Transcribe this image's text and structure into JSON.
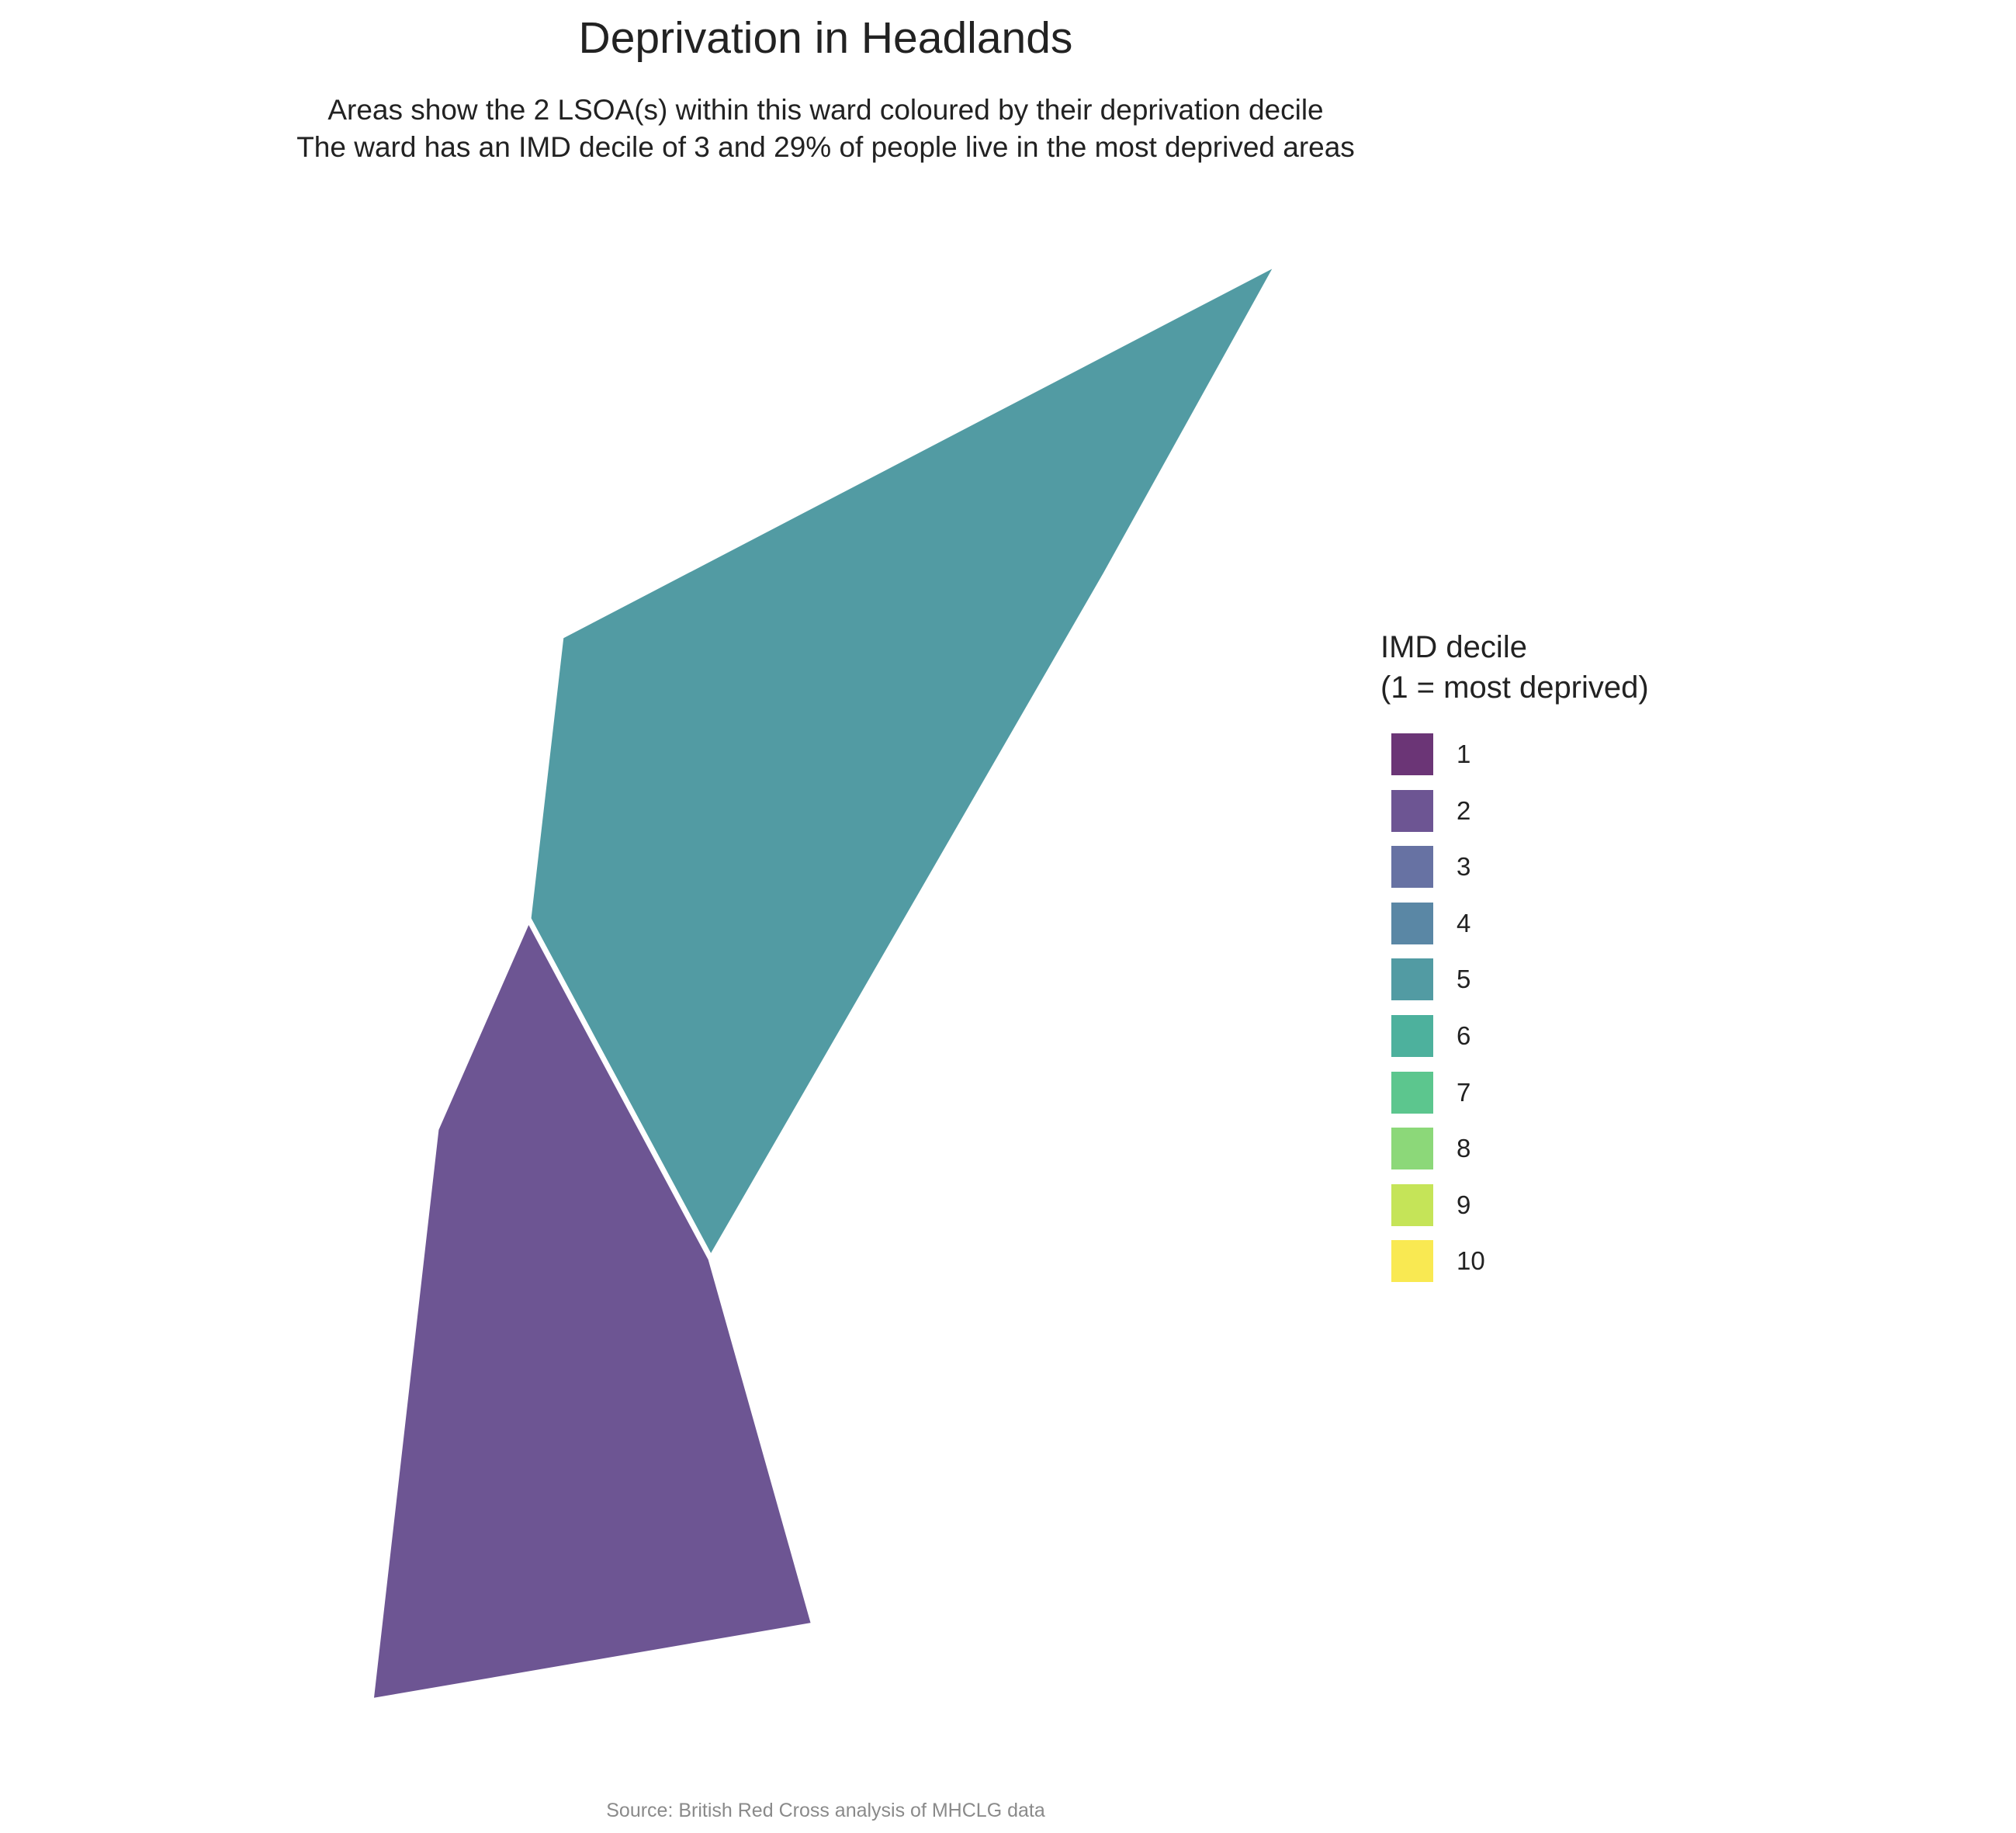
{
  "title": "Deprivation in Headlands",
  "subtitle_lines": [
    "Areas show the 2 LSOA(s) within this ward coloured by their deprivation decile",
    "The ward has an IMD decile of 3 and 29% of people live in the most deprived areas"
  ],
  "areas": [
    {
      "decile": 5,
      "color": "#529ba3"
    },
    {
      "decile": 2,
      "color": "#6d5593"
    }
  ],
  "legend": {
    "title_lines": [
      "IMD decile",
      "(1 = most deprived)"
    ],
    "items": [
      {
        "label": "1",
        "color": "#6b3576"
      },
      {
        "label": "2",
        "color": "#6d5593"
      },
      {
        "label": "3",
        "color": "#6772a3"
      },
      {
        "label": "4",
        "color": "#5a87a5"
      },
      {
        "label": "5",
        "color": "#529ba3"
      },
      {
        "label": "6",
        "color": "#4db19d"
      },
      {
        "label": "7",
        "color": "#5cc68e"
      },
      {
        "label": "8",
        "color": "#8cd879"
      },
      {
        "label": "9",
        "color": "#c5e458"
      },
      {
        "label": "10",
        "color": "#f9e952"
      }
    ]
  },
  "caption": "Source: British Red Cross analysis of MHCLG data"
}
